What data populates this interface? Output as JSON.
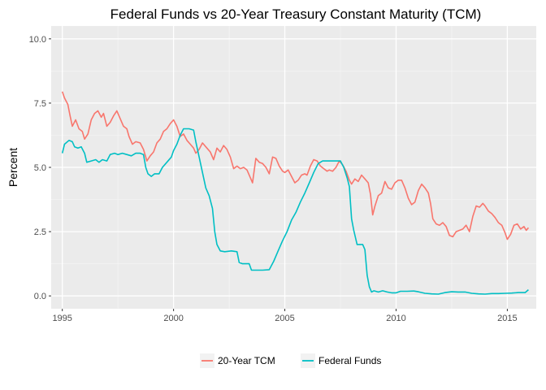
{
  "chart_data": {
    "type": "line",
    "title": "Federal Funds vs 20-Year Treasury Constant Maturity (TCM)",
    "xlabel": "",
    "ylabel": "Percent",
    "xlim": [
      1994.5,
      2016.3
    ],
    "ylim": [
      -0.5,
      10.5
    ],
    "x_ticks": [
      1995,
      2000,
      2005,
      2010,
      2015
    ],
    "y_ticks": [
      0.0,
      2.5,
      5.0,
      7.5,
      10.0
    ],
    "y_tick_labels": [
      "0.0",
      "2.5",
      "5.0",
      "7.5",
      "10.0"
    ],
    "grid": true,
    "legend_position": "bottom",
    "series": [
      {
        "name": "20-Year TCM",
        "color": "#F8766D",
        "points": [
          [
            1995.0,
            7.95
          ],
          [
            1995.1,
            7.7
          ],
          [
            1995.25,
            7.45
          ],
          [
            1995.35,
            7.0
          ],
          [
            1995.45,
            6.6
          ],
          [
            1995.6,
            6.85
          ],
          [
            1995.75,
            6.5
          ],
          [
            1995.9,
            6.4
          ],
          [
            1996.0,
            6.1
          ],
          [
            1996.15,
            6.3
          ],
          [
            1996.3,
            6.85
          ],
          [
            1996.45,
            7.1
          ],
          [
            1996.6,
            7.2
          ],
          [
            1996.75,
            6.95
          ],
          [
            1996.85,
            7.1
          ],
          [
            1997.0,
            6.6
          ],
          [
            1997.15,
            6.75
          ],
          [
            1997.3,
            7.0
          ],
          [
            1997.45,
            7.2
          ],
          [
            1997.6,
            6.9
          ],
          [
            1997.75,
            6.6
          ],
          [
            1997.9,
            6.5
          ],
          [
            1998.0,
            6.2
          ],
          [
            1998.15,
            5.9
          ],
          [
            1998.3,
            6.0
          ],
          [
            1998.5,
            5.95
          ],
          [
            1998.65,
            5.7
          ],
          [
            1998.8,
            5.25
          ],
          [
            1998.95,
            5.45
          ],
          [
            1999.1,
            5.6
          ],
          [
            1999.25,
            5.95
          ],
          [
            1999.4,
            6.1
          ],
          [
            1999.55,
            6.4
          ],
          [
            1999.7,
            6.5
          ],
          [
            1999.85,
            6.7
          ],
          [
            2000.0,
            6.85
          ],
          [
            2000.15,
            6.6
          ],
          [
            2000.3,
            6.2
          ],
          [
            2000.45,
            6.3
          ],
          [
            2000.6,
            6.05
          ],
          [
            2000.75,
            5.9
          ],
          [
            2000.9,
            5.75
          ],
          [
            2001.0,
            5.55
          ],
          [
            2001.15,
            5.7
          ],
          [
            2001.3,
            5.95
          ],
          [
            2001.5,
            5.75
          ],
          [
            2001.65,
            5.6
          ],
          [
            2001.8,
            5.3
          ],
          [
            2001.95,
            5.75
          ],
          [
            2002.1,
            5.6
          ],
          [
            2002.25,
            5.85
          ],
          [
            2002.4,
            5.7
          ],
          [
            2002.55,
            5.4
          ],
          [
            2002.7,
            4.95
          ],
          [
            2002.85,
            5.05
          ],
          [
            2003.0,
            4.95
          ],
          [
            2003.15,
            5.0
          ],
          [
            2003.3,
            4.9
          ],
          [
            2003.45,
            4.6
          ],
          [
            2003.55,
            4.4
          ],
          [
            2003.7,
            5.35
          ],
          [
            2003.85,
            5.2
          ],
          [
            2004.0,
            5.15
          ],
          [
            2004.15,
            5.0
          ],
          [
            2004.3,
            4.75
          ],
          [
            2004.45,
            5.4
          ],
          [
            2004.6,
            5.35
          ],
          [
            2004.75,
            5.05
          ],
          [
            2004.9,
            4.85
          ],
          [
            2005.0,
            4.8
          ],
          [
            2005.15,
            4.9
          ],
          [
            2005.3,
            4.65
          ],
          [
            2005.45,
            4.4
          ],
          [
            2005.6,
            4.5
          ],
          [
            2005.75,
            4.7
          ],
          [
            2005.9,
            4.75
          ],
          [
            2006.0,
            4.7
          ],
          [
            2006.15,
            5.05
          ],
          [
            2006.3,
            5.3
          ],
          [
            2006.45,
            5.25
          ],
          [
            2006.6,
            5.05
          ],
          [
            2006.75,
            4.95
          ],
          [
            2006.9,
            4.85
          ],
          [
            2007.0,
            4.9
          ],
          [
            2007.15,
            4.85
          ],
          [
            2007.3,
            5.0
          ],
          [
            2007.45,
            5.25
          ],
          [
            2007.6,
            5.1
          ],
          [
            2007.75,
            4.85
          ],
          [
            2007.9,
            4.5
          ],
          [
            2008.0,
            4.35
          ],
          [
            2008.15,
            4.55
          ],
          [
            2008.3,
            4.45
          ],
          [
            2008.45,
            4.7
          ],
          [
            2008.6,
            4.55
          ],
          [
            2008.75,
            4.4
          ],
          [
            2008.85,
            3.95
          ],
          [
            2008.95,
            3.15
          ],
          [
            2009.05,
            3.5
          ],
          [
            2009.2,
            3.9
          ],
          [
            2009.35,
            4.0
          ],
          [
            2009.5,
            4.45
          ],
          [
            2009.65,
            4.2
          ],
          [
            2009.8,
            4.15
          ],
          [
            2009.95,
            4.4
          ],
          [
            2010.1,
            4.5
          ],
          [
            2010.25,
            4.5
          ],
          [
            2010.4,
            4.2
          ],
          [
            2010.55,
            3.8
          ],
          [
            2010.7,
            3.55
          ],
          [
            2010.85,
            3.65
          ],
          [
            2011.0,
            4.1
          ],
          [
            2011.15,
            4.35
          ],
          [
            2011.3,
            4.2
          ],
          [
            2011.45,
            4.0
          ],
          [
            2011.55,
            3.6
          ],
          [
            2011.65,
            3.0
          ],
          [
            2011.8,
            2.8
          ],
          [
            2011.95,
            2.75
          ],
          [
            2012.1,
            2.85
          ],
          [
            2012.25,
            2.7
          ],
          [
            2012.4,
            2.35
          ],
          [
            2012.55,
            2.3
          ],
          [
            2012.7,
            2.5
          ],
          [
            2012.85,
            2.55
          ],
          [
            2013.0,
            2.6
          ],
          [
            2013.15,
            2.75
          ],
          [
            2013.3,
            2.5
          ],
          [
            2013.45,
            3.1
          ],
          [
            2013.6,
            3.5
          ],
          [
            2013.75,
            3.45
          ],
          [
            2013.9,
            3.6
          ],
          [
            2014.0,
            3.5
          ],
          [
            2014.15,
            3.3
          ],
          [
            2014.3,
            3.2
          ],
          [
            2014.45,
            3.05
          ],
          [
            2014.6,
            2.85
          ],
          [
            2014.75,
            2.75
          ],
          [
            2014.9,
            2.45
          ],
          [
            2015.0,
            2.2
          ],
          [
            2015.15,
            2.4
          ],
          [
            2015.3,
            2.75
          ],
          [
            2015.45,
            2.8
          ],
          [
            2015.6,
            2.6
          ],
          [
            2015.75,
            2.7
          ],
          [
            2015.85,
            2.55
          ],
          [
            2015.95,
            2.65
          ]
        ]
      },
      {
        "name": "Federal Funds",
        "color": "#00BFC4",
        "points": [
          [
            1995.0,
            5.55
          ],
          [
            1995.1,
            5.9
          ],
          [
            1995.3,
            6.05
          ],
          [
            1995.45,
            6.0
          ],
          [
            1995.55,
            5.8
          ],
          [
            1995.7,
            5.75
          ],
          [
            1995.85,
            5.8
          ],
          [
            1996.0,
            5.55
          ],
          [
            1996.1,
            5.2
          ],
          [
            1996.3,
            5.25
          ],
          [
            1996.5,
            5.3
          ],
          [
            1996.65,
            5.2
          ],
          [
            1996.8,
            5.3
          ],
          [
            1997.0,
            5.25
          ],
          [
            1997.15,
            5.5
          ],
          [
            1997.35,
            5.55
          ],
          [
            1997.5,
            5.5
          ],
          [
            1997.7,
            5.55
          ],
          [
            1997.9,
            5.5
          ],
          [
            1998.1,
            5.45
          ],
          [
            1998.3,
            5.55
          ],
          [
            1998.5,
            5.55
          ],
          [
            1998.65,
            5.5
          ],
          [
            1998.75,
            5.0
          ],
          [
            1998.85,
            4.75
          ],
          [
            1999.0,
            4.65
          ],
          [
            1999.15,
            4.75
          ],
          [
            1999.35,
            4.75
          ],
          [
            1999.5,
            5.0
          ],
          [
            1999.7,
            5.2
          ],
          [
            1999.9,
            5.4
          ],
          [
            2000.0,
            5.65
          ],
          [
            2000.15,
            5.9
          ],
          [
            2000.3,
            6.25
          ],
          [
            2000.45,
            6.5
          ],
          [
            2000.7,
            6.5
          ],
          [
            2000.9,
            6.45
          ],
          [
            2001.0,
            6.0
          ],
          [
            2001.15,
            5.4
          ],
          [
            2001.3,
            4.8
          ],
          [
            2001.45,
            4.2
          ],
          [
            2001.6,
            3.9
          ],
          [
            2001.75,
            3.4
          ],
          [
            2001.85,
            2.5
          ],
          [
            2001.95,
            2.0
          ],
          [
            2002.1,
            1.75
          ],
          [
            2002.3,
            1.72
          ],
          [
            2002.6,
            1.75
          ],
          [
            2002.85,
            1.72
          ],
          [
            2002.95,
            1.3
          ],
          [
            2003.1,
            1.25
          ],
          [
            2003.4,
            1.25
          ],
          [
            2003.5,
            1.0
          ],
          [
            2003.8,
            1.0
          ],
          [
            2004.0,
            1.0
          ],
          [
            2004.3,
            1.02
          ],
          [
            2004.5,
            1.35
          ],
          [
            2004.7,
            1.75
          ],
          [
            2004.9,
            2.15
          ],
          [
            2005.1,
            2.5
          ],
          [
            2005.3,
            2.95
          ],
          [
            2005.5,
            3.25
          ],
          [
            2005.7,
            3.65
          ],
          [
            2005.9,
            4.0
          ],
          [
            2006.1,
            4.4
          ],
          [
            2006.3,
            4.8
          ],
          [
            2006.5,
            5.15
          ],
          [
            2006.7,
            5.25
          ],
          [
            2006.9,
            5.25
          ],
          [
            2007.1,
            5.25
          ],
          [
            2007.3,
            5.25
          ],
          [
            2007.5,
            5.25
          ],
          [
            2007.65,
            5.0
          ],
          [
            2007.8,
            4.6
          ],
          [
            2007.9,
            4.25
          ],
          [
            2008.0,
            3.0
          ],
          [
            2008.1,
            2.55
          ],
          [
            2008.25,
            2.0
          ],
          [
            2008.5,
            2.0
          ],
          [
            2008.6,
            1.8
          ],
          [
            2008.7,
            0.8
          ],
          [
            2008.8,
            0.35
          ],
          [
            2008.9,
            0.15
          ],
          [
            2009.0,
            0.2
          ],
          [
            2009.2,
            0.15
          ],
          [
            2009.4,
            0.2
          ],
          [
            2009.6,
            0.15
          ],
          [
            2009.8,
            0.12
          ],
          [
            2010.0,
            0.12
          ],
          [
            2010.2,
            0.18
          ],
          [
            2010.5,
            0.18
          ],
          [
            2010.8,
            0.19
          ],
          [
            2011.0,
            0.16
          ],
          [
            2011.3,
            0.1
          ],
          [
            2011.6,
            0.08
          ],
          [
            2011.9,
            0.07
          ],
          [
            2012.2,
            0.13
          ],
          [
            2012.5,
            0.16
          ],
          [
            2012.8,
            0.15
          ],
          [
            2013.1,
            0.15
          ],
          [
            2013.4,
            0.1
          ],
          [
            2013.7,
            0.08
          ],
          [
            2014.0,
            0.07
          ],
          [
            2014.3,
            0.09
          ],
          [
            2014.6,
            0.09
          ],
          [
            2014.9,
            0.1
          ],
          [
            2015.2,
            0.11
          ],
          [
            2015.5,
            0.13
          ],
          [
            2015.8,
            0.13
          ],
          [
            2015.95,
            0.24
          ]
        ]
      }
    ]
  }
}
